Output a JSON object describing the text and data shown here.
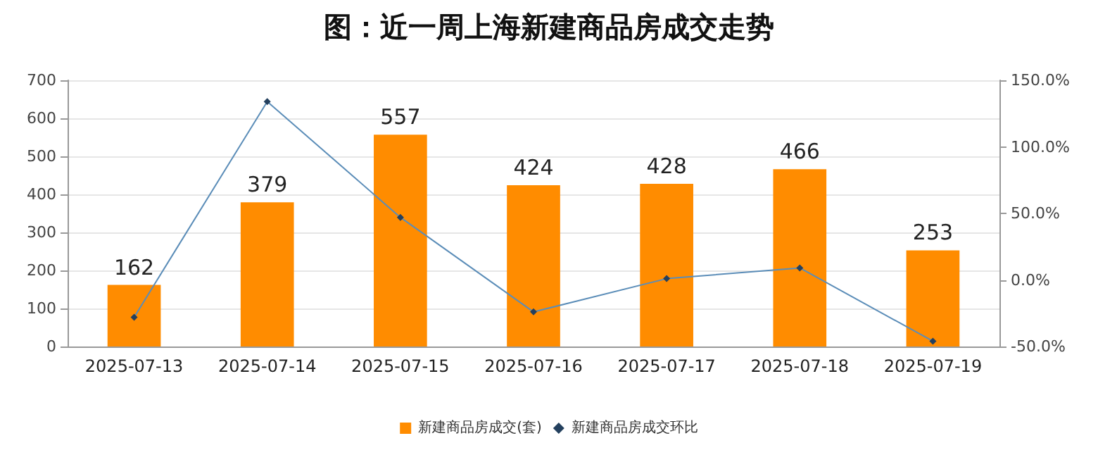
{
  "chart_data": {
    "type": "bar",
    "title": "图：近一周上海新建商品房成交走势",
    "categories": [
      "2025-07-13",
      "2025-07-14",
      "2025-07-15",
      "2025-07-16",
      "2025-07-17",
      "2025-07-18",
      "2025-07-19"
    ],
    "series": [
      {
        "name": "新建商品房成交(套)",
        "color": "#ff8c00",
        "values": [
          162,
          379,
          557,
          424,
          428,
          466,
          253
        ],
        "data_labels": true
      },
      {
        "name": "新建商品房成交环比",
        "type": "line",
        "axis": "y2",
        "color": "#5b8db8",
        "marker": "diamond",
        "values": [
          -28,
          134,
          47,
          -24,
          1,
          9,
          -46
        ]
      }
    ],
    "ylim": [
      0,
      700
    ],
    "yticks": [
      0,
      100,
      200,
      300,
      400,
      500,
      600,
      700
    ],
    "y2lim": [
      -50,
      150
    ],
    "y2ticks": [
      {
        "value": -50,
        "label": "-50.0%"
      },
      {
        "value": 0,
        "label": "0.0%"
      },
      {
        "value": 50,
        "label": "50.0%"
      },
      {
        "value": 100,
        "label": "100.0%"
      },
      {
        "value": 150,
        "label": "150.0%"
      }
    ],
    "grid": "y",
    "legend": "bottom"
  }
}
